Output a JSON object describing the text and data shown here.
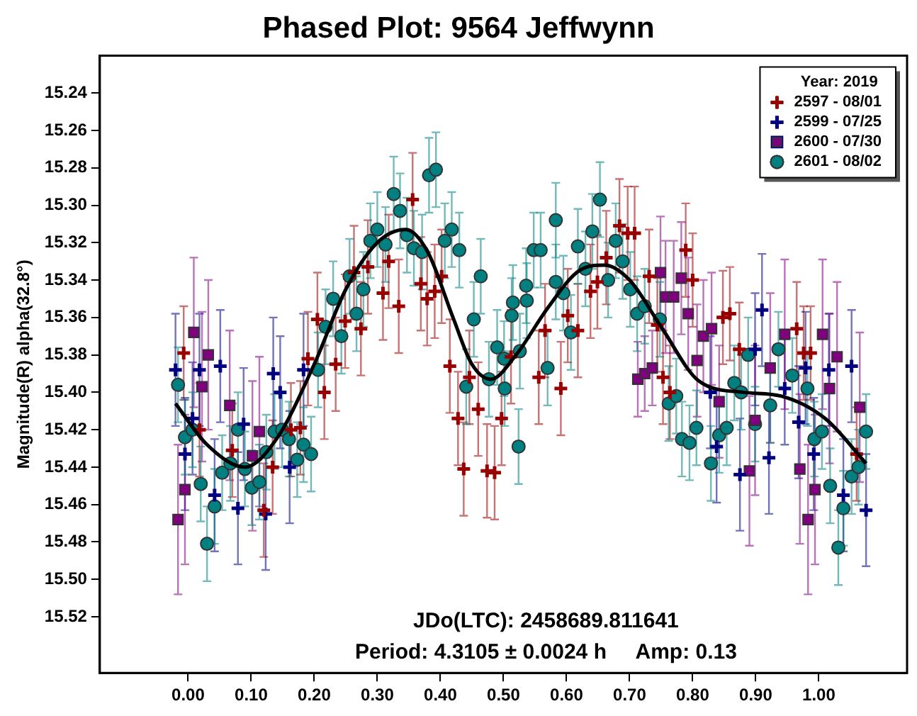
{
  "chart_data": {
    "type": "scatter",
    "title": "Phased Plot: 9564 Jeffwynn",
    "ylabel": "Magnitude(R) alpha(32.8°)",
    "legend_title": "Year: 2019",
    "legend": "top right",
    "grid": false,
    "xlim": [
      -0.14,
      1.14
    ],
    "ylim": [
      15.55,
      15.22
    ],
    "xticks": [
      {
        "value": 0,
        "label": "0.00"
      },
      {
        "value": 0.1,
        "label": "0.10"
      },
      {
        "value": 0.2,
        "label": "0.20"
      },
      {
        "value": 0.3,
        "label": "0.30"
      },
      {
        "value": 0.4,
        "label": "0.40"
      },
      {
        "value": 0.5,
        "label": "0.50"
      },
      {
        "value": 0.6,
        "label": "0.60"
      },
      {
        "value": 0.7,
        "label": "0.70"
      },
      {
        "value": 0.8,
        "label": "0.80"
      },
      {
        "value": 0.9,
        "label": "0.90"
      },
      {
        "value": 1,
        "label": "1.00"
      }
    ],
    "yticks": [
      15.24,
      15.26,
      15.28,
      {
        "value": 15.3,
        "label": "15.30"
      },
      15.32,
      15.34,
      15.36,
      15.38,
      {
        "value": 15.4,
        "label": "15.40"
      },
      15.42,
      15.44,
      15.46,
      15.48,
      {
        "value": 15.5,
        "label": "15.50"
      },
      15.52
    ],
    "annotations": [
      "JDo(LTC): 2458689.811641",
      "Period: 4.3105 ± 0.0024 h     Amp: 0.13"
    ],
    "series": [
      {
        "name": "2597 - 08/01",
        "color": "#990000",
        "marker": "cross",
        "x": [
          -0.007,
          0.018,
          0.07,
          0.12,
          0.134,
          0.163,
          0.178,
          0.19,
          0.205,
          0.216,
          0.234,
          0.249,
          0.263,
          0.274,
          0.285,
          0.309,
          0.318,
          0.334,
          0.356,
          0.369,
          0.379,
          0.391,
          0.402,
          0.415,
          0.428,
          0.437,
          0.446,
          0.46,
          0.474,
          0.486,
          0.497,
          0.512,
          0.556,
          0.566,
          0.591,
          0.602,
          0.618,
          0.638,
          0.649,
          0.663,
          0.684,
          0.697,
          0.708,
          0.731,
          0.744,
          0.753,
          0.764,
          0.789,
          0.8,
          0.848,
          0.859,
          0.874,
          0.965,
          0.976,
          0.987,
          1.06
        ],
        "values": [
          15.379,
          15.42,
          15.431,
          15.463,
          15.44,
          15.42,
          15.419,
          15.382,
          15.361,
          15.4,
          15.385,
          15.362,
          15.336,
          15.366,
          15.333,
          15.347,
          15.33,
          15.354,
          15.297,
          15.342,
          15.35,
          15.346,
          15.338,
          15.386,
          15.414,
          15.441,
          15.392,
          15.409,
          15.442,
          15.443,
          15.414,
          15.381,
          15.392,
          15.367,
          15.398,
          15.359,
          15.367,
          15.346,
          15.341,
          15.328,
          15.311,
          15.315,
          15.315,
          15.338,
          15.364,
          15.392,
          15.4,
          15.324,
          15.34,
          15.36,
          15.358,
          15.377,
          15.366,
          15.379,
          15.379,
          15.433
        ],
        "errors": [
          0.025,
          0.025,
          0.025,
          0.025,
          0.025,
          0.025,
          0.025,
          0.025,
          0.025,
          0.025,
          0.025,
          0.025,
          0.025,
          0.025,
          0.025,
          0.025,
          0.025,
          0.025,
          0.025,
          0.025,
          0.025,
          0.025,
          0.025,
          0.025,
          0.025,
          0.025,
          0.025,
          0.025,
          0.025,
          0.025,
          0.025,
          0.025,
          0.025,
          0.025,
          0.025,
          0.025,
          0.025,
          0.025,
          0.025,
          0.025,
          0.025,
          0.025,
          0.025,
          0.025,
          0.025,
          0.025,
          0.025,
          0.025,
          0.025,
          0.025,
          0.025,
          0.025,
          0.025,
          0.025,
          0.025,
          0.025
        ]
      },
      {
        "name": "2599 - 07/25",
        "color": "#000080",
        "marker": "cross",
        "x": [
          -0.02,
          -0.005,
          0.007,
          0.018,
          0.042,
          0.051,
          0.079,
          0.088,
          0.123,
          0.135,
          0.146,
          0.161,
          0.183,
          0.828,
          0.838,
          0.875,
          0.899,
          0.91,
          0.921,
          0.946,
          0.968,
          0.979,
          0.992,
          1.016,
          1.039,
          1.052,
          1.075
        ],
        "values": [
          15.388,
          15.433,
          15.414,
          15.388,
          15.455,
          15.386,
          15.462,
          15.417,
          15.465,
          15.39,
          15.4,
          15.44,
          15.388,
          15.4,
          15.429,
          15.444,
          15.377,
          15.356,
          15.435,
          15.398,
          15.416,
          15.387,
          15.433,
          15.388,
          15.455,
          15.386,
          15.463
        ],
        "errors": [
          0.03,
          0.03,
          0.03,
          0.03,
          0.03,
          0.03,
          0.03,
          0.03,
          0.03,
          0.03,
          0.03,
          0.03,
          0.03,
          0.03,
          0.03,
          0.03,
          0.03,
          0.03,
          0.03,
          0.03,
          0.03,
          0.03,
          0.03,
          0.03,
          0.03,
          0.03,
          0.03
        ]
      },
      {
        "name": "2600 - 07/30",
        "color": "#800080",
        "marker": "square",
        "x": [
          -0.016,
          -0.005,
          0.009,
          0.022,
          0.032,
          0.066,
          0.102,
          0.113,
          0.713,
          0.724,
          0.736,
          0.749,
          0.757,
          0.77,
          0.782,
          0.793,
          0.807,
          0.817,
          0.83,
          0.842,
          0.89,
          0.899,
          0.923,
          0.946,
          0.97,
          0.983,
          0.994,
          1.006,
          1.017,
          1.029,
          1.065
        ],
        "values": [
          15.468,
          15.452,
          15.368,
          15.397,
          15.38,
          15.407,
          15.434,
          15.421,
          15.393,
          15.39,
          15.387,
          15.336,
          15.349,
          15.349,
          15.339,
          15.358,
          15.383,
          15.37,
          15.366,
          15.405,
          15.442,
          15.415,
          15.387,
          15.369,
          15.441,
          15.468,
          15.452,
          15.369,
          15.398,
          15.381,
          15.408
        ],
        "errors": [
          0.04,
          0.04,
          0.04,
          0.04,
          0.04,
          0.04,
          0.04,
          0.04,
          0.02,
          0.02,
          0.02,
          0.03,
          0.03,
          0.03,
          0.03,
          0.03,
          0.03,
          0.03,
          0.03,
          0.03,
          0.04,
          0.04,
          0.04,
          0.04,
          0.04,
          0.04,
          0.04,
          0.04,
          0.04,
          0.04,
          0.04
        ]
      },
      {
        "name": "2601 - 08/02",
        "color": "#008080",
        "marker": "circle",
        "x": [
          -0.016,
          -0.005,
          0.007,
          0.02,
          0.03,
          0.042,
          0.054,
          0.067,
          0.079,
          0.09,
          0.101,
          0.113,
          0.124,
          0.137,
          0.149,
          0.16,
          0.173,
          0.183,
          0.195,
          0.206,
          0.218,
          0.23,
          0.243,
          0.256,
          0.267,
          0.278,
          0.289,
          0.3,
          0.313,
          0.326,
          0.336,
          0.347,
          0.358,
          0.371,
          0.382,
          0.393,
          0.407,
          0.418,
          0.43,
          0.441,
          0.453,
          0.464,
          0.477,
          0.49,
          0.501,
          0.502,
          0.513,
          0.515,
          0.524,
          0.526,
          0.536,
          0.537,
          0.548,
          0.559,
          0.57,
          0.583,
          0.583,
          0.595,
          0.607,
          0.618,
          0.63,
          0.641,
          0.653,
          0.666,
          0.678,
          0.689,
          0.701,
          0.712,
          0.724,
          0.748,
          0.762,
          0.774,
          0.783,
          0.795,
          0.806,
          0.829,
          0.842,
          0.854,
          0.866,
          0.877,
          0.888,
          0.899,
          0.923,
          0.936,
          0.958,
          0.982,
          0.993,
          1.005,
          1.018,
          1.031,
          1.039,
          1.052,
          1.063,
          1.075
        ],
        "values": [
          15.396,
          15.424,
          15.42,
          15.449,
          15.481,
          15.461,
          15.443,
          15.438,
          15.42,
          15.441,
          15.451,
          15.448,
          15.432,
          15.421,
          15.42,
          15.425,
          15.436,
          15.428,
          15.433,
          15.388,
          15.365,
          15.35,
          15.37,
          15.338,
          15.358,
          15.345,
          15.319,
          15.313,
          15.321,
          15.294,
          15.303,
          15.316,
          15.323,
          15.325,
          15.284,
          15.281,
          15.319,
          15.313,
          15.324,
          15.397,
          15.361,
          15.338,
          15.393,
          15.376,
          15.382,
          15.398,
          15.359,
          15.352,
          15.429,
          15.378,
          15.343,
          15.351,
          15.324,
          15.324,
          15.387,
          15.308,
          15.341,
          15.347,
          15.368,
          15.322,
          15.334,
          15.314,
          15.297,
          15.34,
          15.319,
          15.33,
          15.345,
          15.358,
          15.354,
          15.361,
          15.406,
          15.402,
          15.425,
          15.427,
          15.419,
          15.438,
          15.423,
          15.419,
          15.395,
          15.4,
          15.38,
          15.417,
          15.407,
          15.377,
          15.391,
          15.398,
          15.425,
          15.421,
          15.45,
          15.483,
          15.462,
          15.445,
          15.44,
          15.421
        ],
        "errors": [
          0.02,
          0.02,
          0.02,
          0.02,
          0.02,
          0.02,
          0.02,
          0.02,
          0.02,
          0.02,
          0.02,
          0.02,
          0.02,
          0.02,
          0.02,
          0.02,
          0.02,
          0.02,
          0.02,
          0.02,
          0.02,
          0.02,
          0.02,
          0.02,
          0.02,
          0.02,
          0.02,
          0.02,
          0.02,
          0.02,
          0.02,
          0.02,
          0.02,
          0.02,
          0.02,
          0.02,
          0.02,
          0.02,
          0.02,
          0.02,
          0.02,
          0.02,
          0.02,
          0.02,
          0.02,
          0.02,
          0.02,
          0.02,
          0.02,
          0.02,
          0.02,
          0.02,
          0.02,
          0.02,
          0.02,
          0.02,
          0.02,
          0.02,
          0.02,
          0.02,
          0.02,
          0.02,
          0.02,
          0.02,
          0.02,
          0.02,
          0.02,
          0.02,
          0.02,
          0.02,
          0.02,
          0.02,
          0.02,
          0.02,
          0.02,
          0.02,
          0.02,
          0.02,
          0.02,
          0.02,
          0.02,
          0.02,
          0.02,
          0.02,
          0.02,
          0.02,
          0.02,
          0.02,
          0.02,
          0.02,
          0.02,
          0.02,
          0.02,
          0.02
        ]
      },
      {
        "type": "line",
        "color": "#000000",
        "marker": "none",
        "x": [
          -0.02,
          0.03,
          0.09,
          0.14,
          0.2,
          0.25,
          0.3,
          0.345,
          0.38,
          0.42,
          0.45,
          0.48,
          0.52,
          0.57,
          0.62,
          0.66,
          0.7,
          0.75,
          0.81,
          0.88,
          0.94,
          1.01,
          1.075
        ],
        "values": [
          15.406,
          15.428,
          15.44,
          15.425,
          15.385,
          15.345,
          15.32,
          15.313,
          15.325,
          15.36,
          15.385,
          15.393,
          15.38,
          15.355,
          15.335,
          15.332,
          15.34,
          15.365,
          15.394,
          15.4,
          15.402,
          15.414,
          15.438
        ]
      }
    ]
  }
}
